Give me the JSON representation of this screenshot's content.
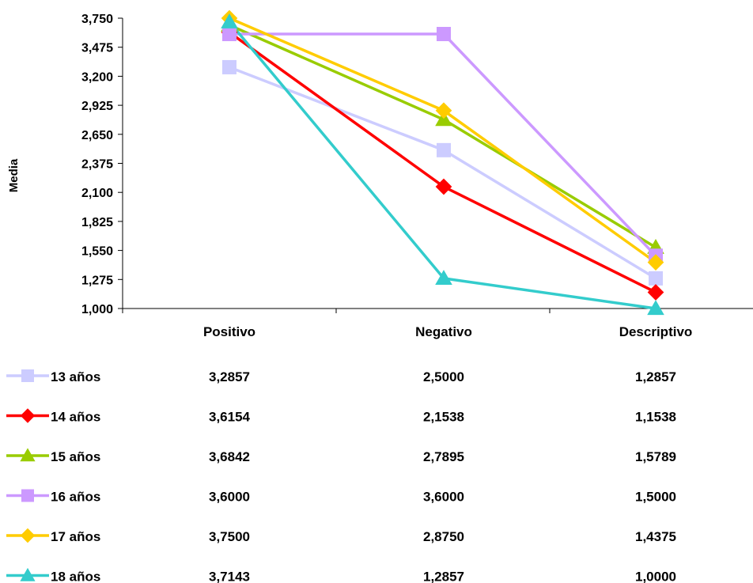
{
  "chart_data": {
    "type": "line",
    "ylabel": "Media",
    "xlabel": "",
    "ylim": [
      1.0,
      3.75
    ],
    "yticks": [
      "3,750",
      "3,475",
      "3,200",
      "2,925",
      "2,650",
      "2,375",
      "2,100",
      "1,825",
      "1,550",
      "1,275",
      "1,000"
    ],
    "ytick_values": [
      3.75,
      3.475,
      3.2,
      2.925,
      2.65,
      2.375,
      2.1,
      1.825,
      1.55,
      1.275,
      1.0
    ],
    "categories": [
      "Positivo",
      "Negativo",
      "Descriptivo"
    ],
    "grid": false,
    "legend_placement": "bottom data table",
    "series": [
      {
        "name": "13 años",
        "values": [
          3.2857,
          2.5,
          1.2857
        ],
        "labels": [
          "3,2857",
          "2,5000",
          "1,2857"
        ],
        "color": "#ccccff",
        "marker": "square"
      },
      {
        "name": "14 años",
        "values": [
          3.6154,
          2.1538,
          1.1538
        ],
        "labels": [
          "3,6154",
          "2,1538",
          "1,1538"
        ],
        "color": "#ff0000",
        "marker": "diamond"
      },
      {
        "name": "15 años",
        "values": [
          3.6842,
          2.7895,
          1.5789
        ],
        "labels": [
          "3,6842",
          "2,7895",
          "1,5789"
        ],
        "color": "#99cc00",
        "marker": "triangle"
      },
      {
        "name": "16 años",
        "values": [
          3.6,
          3.6,
          1.5
        ],
        "labels": [
          "3,6000",
          "3,6000",
          "1,5000"
        ],
        "color": "#cc99ff",
        "marker": "square"
      },
      {
        "name": "17 años",
        "values": [
          3.75,
          2.875,
          1.4375
        ],
        "labels": [
          "3,7500",
          "2,8750",
          "1,4375"
        ],
        "color": "#ffcc00",
        "marker": "diamond"
      },
      {
        "name": "18 años",
        "values": [
          3.7143,
          1.2857,
          1.0
        ],
        "labels": [
          "3,7143",
          "1,2857",
          "1,0000"
        ],
        "color": "#33cccc",
        "marker": "triangle"
      }
    ]
  }
}
